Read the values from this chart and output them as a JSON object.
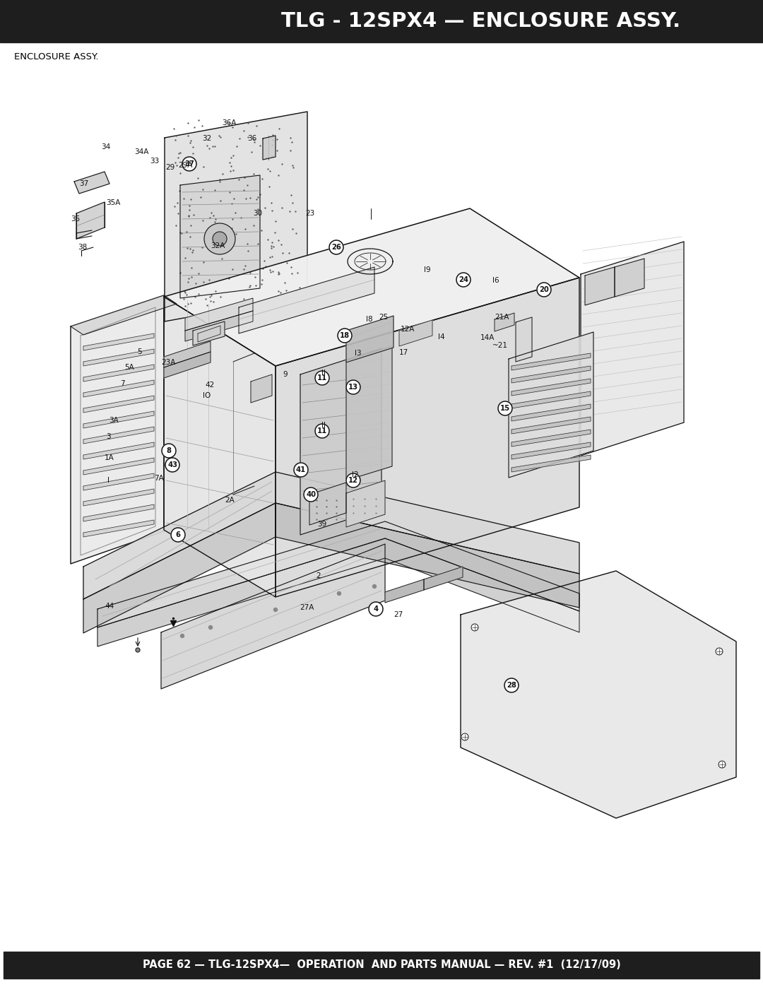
{
  "title": "TLG - 12SPX4 — ENCLOSURE ASSY.",
  "subtitle": "ENCLOSURE ASSY.",
  "footer": "PAGE 62 — TLG-12SPX4—  OPERATION  AND PARTS MANUAL — REV. #1  (12/17/09)",
  "title_bg": "#1e1e1e",
  "title_color": "#ffffff",
  "footer_bg": "#1e1e1e",
  "footer_color": "#ffffff",
  "page_bg": "#ffffff",
  "title_fontsize": 21,
  "footer_fontsize": 10.5,
  "subtitle_fontsize": 9.5
}
